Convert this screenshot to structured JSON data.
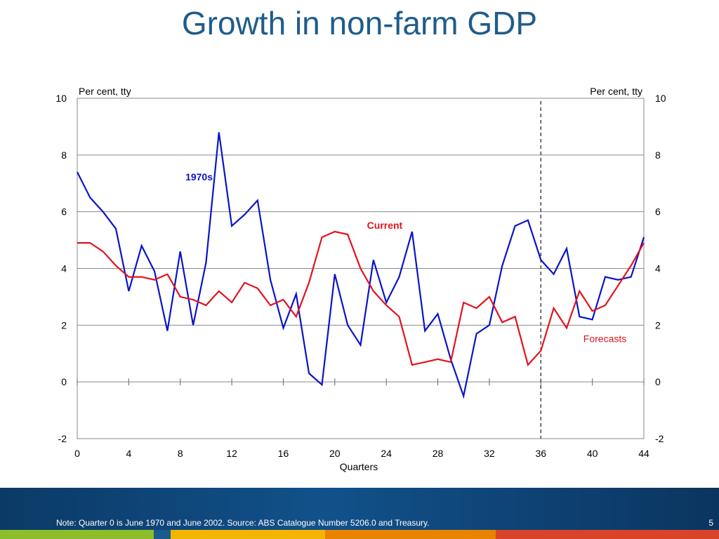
{
  "slide": {
    "title": "Growth in non-farm GDP",
    "note": "Note: Quarter 0 is June 1970 and June 2002. Source: ABS Catalogue Number 5206.0 and Treasury.",
    "page_number": "5",
    "stripe_colors": [
      "#8cbd2a",
      "#1a5a8c",
      "#f4b400",
      "#e98300",
      "#d9432a"
    ]
  },
  "chart_data": {
    "type": "line",
    "xlabel": "Quarters",
    "ylabel_left": "Per cent, tty",
    "ylabel_right": "Per cent, tty",
    "xlim": [
      0,
      44
    ],
    "ylim": [
      -2,
      10
    ],
    "xticks": [
      0,
      4,
      8,
      12,
      16,
      20,
      24,
      28,
      32,
      36,
      40,
      44
    ],
    "yticks": [
      -2,
      0,
      2,
      4,
      6,
      8,
      10
    ],
    "grid": "horizontal",
    "forecast_start": 36,
    "series": [
      {
        "name": "1970s",
        "color": "#0a14c8",
        "x": [
          0,
          1,
          2,
          3,
          4,
          5,
          6,
          7,
          8,
          9,
          10,
          11,
          12,
          13,
          14,
          15,
          16,
          17,
          18,
          19,
          20,
          21,
          22,
          23,
          24,
          25,
          26,
          27,
          28,
          29,
          30,
          31,
          32,
          33,
          34,
          35,
          36,
          37,
          38,
          39,
          40,
          41,
          42,
          43,
          44
        ],
        "values": [
          7.4,
          6.5,
          6.0,
          5.4,
          3.2,
          4.8,
          3.9,
          1.8,
          4.6,
          2.0,
          4.2,
          8.8,
          5.5,
          5.9,
          6.4,
          3.6,
          1.9,
          3.1,
          0.3,
          -0.1,
          3.8,
          2.0,
          1.3,
          4.3,
          2.8,
          3.7,
          5.3,
          1.8,
          2.4,
          0.8,
          -0.5,
          1.7,
          2.0,
          4.1,
          5.5,
          5.7,
          4.3,
          3.8,
          4.7,
          2.3,
          2.2,
          3.7,
          3.6,
          3.7,
          5.1
        ]
      },
      {
        "name": "Current",
        "color": "#e0141e",
        "x": [
          0,
          1,
          2,
          3,
          4,
          5,
          6,
          7,
          8,
          9,
          10,
          11,
          12,
          13,
          14,
          15,
          16,
          17,
          18,
          19,
          20,
          21,
          22,
          23,
          24,
          25,
          26,
          27,
          28,
          29,
          30,
          31,
          32,
          33,
          34,
          35,
          36,
          37,
          38,
          39,
          40,
          41,
          42,
          43,
          44
        ],
        "values": [
          4.9,
          4.9,
          4.6,
          4.1,
          3.7,
          3.7,
          3.6,
          3.8,
          3.0,
          2.9,
          2.7,
          3.2,
          2.8,
          3.5,
          3.3,
          2.7,
          2.9,
          2.3,
          3.5,
          5.1,
          5.3,
          5.2,
          4.0,
          3.2,
          2.7,
          2.3,
          0.6,
          0.7,
          0.8,
          0.7,
          2.8,
          2.6,
          3.0,
          2.1,
          2.3,
          0.6,
          1.1,
          2.6,
          1.9,
          3.2,
          2.5,
          2.7,
          3.4,
          4.1,
          4.9
        ]
      }
    ],
    "annotations": [
      {
        "text": "1970s",
        "color": "#0a14c8",
        "x": 8.4,
        "y": 7.1
      },
      {
        "text": "Current",
        "color": "#e0141e",
        "x": 22.5,
        "y": 5.4
      },
      {
        "text": "Forecasts",
        "color": "#e0141e",
        "x": 39.3,
        "y": 1.4
      }
    ]
  }
}
